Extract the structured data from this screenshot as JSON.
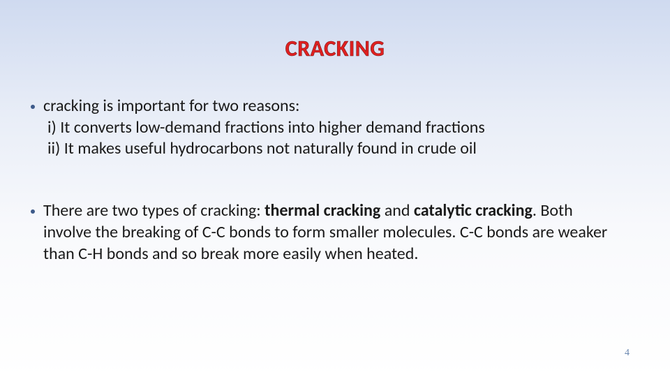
{
  "slide": {
    "title": "CRACKING",
    "title_color": "#e02020",
    "title_fontsize": 32,
    "background_gradient_top": "#cfdaf0",
    "background_gradient_bottom": "#ffffff",
    "bullet_color": "#3d5a8a",
    "body_fontsize": 24,
    "body_color": "#1a1a1a",
    "bullets": [
      {
        "lead": "cracking is important for two reasons:",
        "sub1": "i) It converts low-demand fractions into higher demand fractions",
        "sub2": "ii) It makes useful hydrocarbons not naturally found in crude oil"
      },
      {
        "pre": "There are two types of cracking: ",
        "bold1": "thermal cracking",
        "mid": " and ",
        "bold2": "catalytic cracking",
        "post1": ". Both",
        "line2": "involve the breaking of C-C bonds to form smaller molecules. C-C bonds are weaker than C-H bonds and so break more easily when heated."
      }
    ],
    "page_number": "4",
    "page_number_color": "#6b88b0",
    "page_number_fontsize": 14
  }
}
